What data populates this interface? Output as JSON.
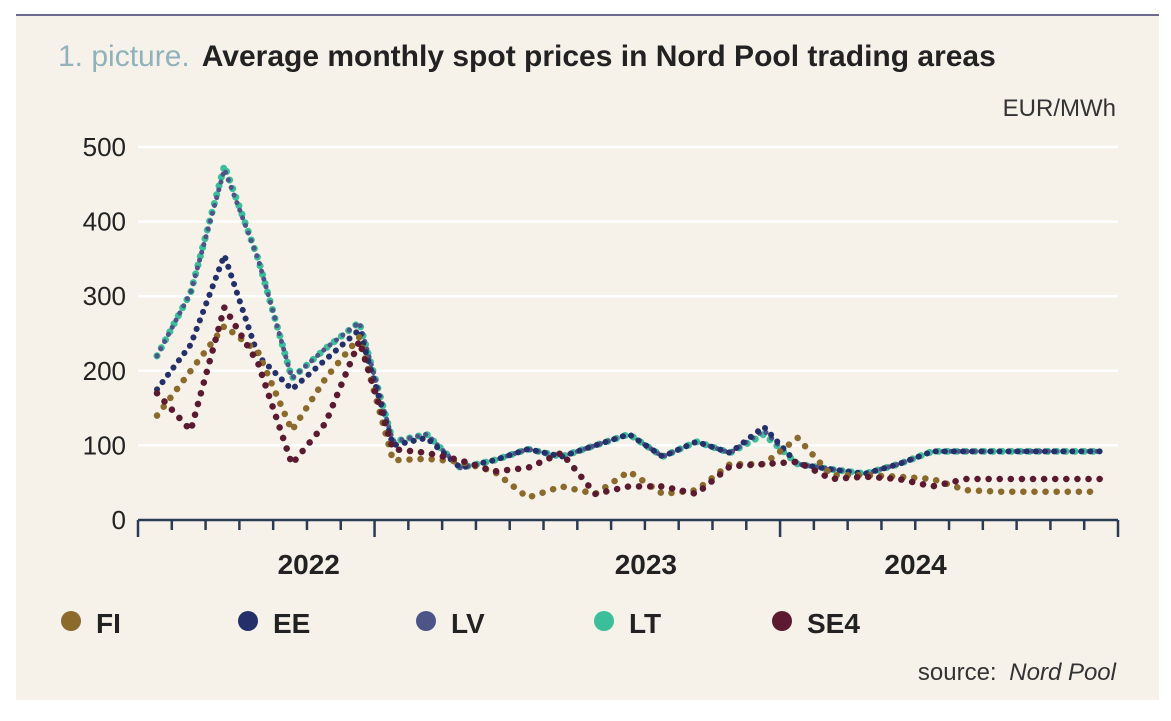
{
  "figure": {
    "title_prefix": "1. picture.",
    "title": "Average monthly spot prices in Nord Pool trading areas",
    "unit": "EUR/MWh",
    "source_prefix": "source:",
    "source_name": "Nord Pool"
  },
  "colors": {
    "background": "#f6f2ea",
    "header_rule": "#3b3a6e",
    "grid": "#ffffff",
    "axis": "#2b3a55"
  },
  "chart_data": {
    "type": "line",
    "months": [
      "2022-01",
      "2022-02",
      "2022-03",
      "2022-04",
      "2022-05",
      "2022-06",
      "2022-07",
      "2022-08",
      "2022-09",
      "2022-10",
      "2022-11",
      "2022-12",
      "2023-01",
      "2023-02",
      "2023-03",
      "2023-04",
      "2023-05",
      "2023-06",
      "2023-07",
      "2023-08",
      "2023-09",
      "2023-10",
      "2023-11",
      "2023-12",
      "2024-01",
      "2024-02",
      "2024-03",
      "2024-04",
      "2024-05"
    ],
    "year_labels": [
      {
        "label": "2022",
        "month_index": 4.5
      },
      {
        "label": "2023",
        "month_index": 14.5
      },
      {
        "label": "2024",
        "month_index": 22.5
      }
    ],
    "ylim": [
      0,
      500
    ],
    "yticks": [
      0,
      100,
      200,
      300,
      400,
      500
    ],
    "grid": true,
    "legend_position": "bottom",
    "series": [
      {
        "name": "FI",
        "color": "#8b6a2b",
        "values": [
          140,
          200,
          260,
          225,
          120,
          190,
          245,
          80,
          82,
          78,
          65,
          30,
          45,
          35,
          65,
          35,
          40,
          75,
          75,
          110,
          60,
          60,
          58,
          55,
          40,
          38,
          38,
          38,
          38
        ]
      },
      {
        "name": "EE",
        "color": "#23306a",
        "values": [
          175,
          235,
          355,
          220,
          175,
          215,
          255,
          100,
          110,
          70,
          80,
          95,
          85,
          100,
          115,
          85,
          105,
          90,
          125,
          75,
          68,
          62,
          75,
          92,
          92,
          92,
          92,
          92,
          92
        ]
      },
      {
        "name": "LV",
        "color": "#4d5588",
        "values": [
          220,
          305,
          470,
          350,
          190,
          230,
          265,
          105,
          115,
          70,
          80,
          95,
          85,
          100,
          115,
          85,
          105,
          90,
          120,
          75,
          68,
          62,
          75,
          92,
          92,
          92,
          92,
          92,
          92
        ]
      },
      {
        "name": "LT",
        "color": "#3bbf9a",
        "values": [
          220,
          305,
          475,
          350,
          190,
          230,
          265,
          105,
          115,
          70,
          80,
          95,
          85,
          100,
          115,
          85,
          105,
          90,
          115,
          75,
          68,
          62,
          75,
          92,
          92,
          92,
          92,
          92,
          92
        ]
      },
      {
        "name": "SE4",
        "color": "#5c1a30",
        "values": [
          170,
          120,
          285,
          210,
          75,
          130,
          240,
          95,
          90,
          80,
          65,
          70,
          90,
          35,
          45,
          45,
          35,
          72,
          75,
          78,
          55,
          58,
          55,
          45,
          55,
          55,
          55,
          55,
          55
        ]
      }
    ]
  }
}
